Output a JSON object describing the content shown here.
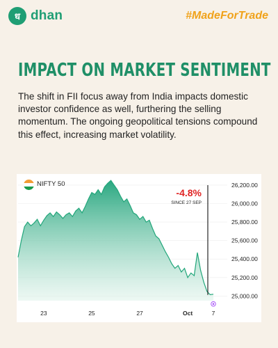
{
  "brand": {
    "logo_glyph": "ध",
    "name": "dhan",
    "hashtag": "#MadeForTrade",
    "color": "#1f9e74",
    "accent": "#f0a21a"
  },
  "headline": "IMPACT ON MARKET SENTIMENT",
  "body": "The shift in FII focus away from India impacts domestic investor confidence as well, furthering the selling momentum. The ongoing geopolitical tensions compound this effect, increasing market volatility.",
  "chart_data": {
    "type": "area",
    "title": "NIFTY 50",
    "flag_icon": "india-flag-icon",
    "annotation": {
      "value": "-4.8%",
      "label": "SINCE 27 SEP",
      "color": "#e02424"
    },
    "x_ticks": [
      "23",
      "25",
      "27",
      "Oct",
      "7"
    ],
    "y_ticks": [
      "26,200.00",
      "26,000.00",
      "25,800.00",
      "25,600.00",
      "25,400.00",
      "25,200.00",
      "25,000.00"
    ],
    "ylim": [
      24950,
      26260
    ],
    "series_color": "#22a67a",
    "values": [
      25420,
      25600,
      25750,
      25800,
      25760,
      25790,
      25830,
      25760,
      25820,
      25870,
      25900,
      25860,
      25910,
      25880,
      25840,
      25880,
      25900,
      25860,
      25920,
      25950,
      25900,
      25970,
      26050,
      26120,
      26100,
      26150,
      26100,
      26180,
      26220,
      26250,
      26200,
      26150,
      26080,
      26020,
      26050,
      25980,
      25900,
      25880,
      25830,
      25860,
      25800,
      25820,
      25730,
      25650,
      25620,
      25550,
      25480,
      25420,
      25350,
      25300,
      25330,
      25260,
      25300,
      25200,
      25250,
      25220,
      25470,
      25280,
      25150,
      25050,
      25015,
      25020
    ]
  }
}
